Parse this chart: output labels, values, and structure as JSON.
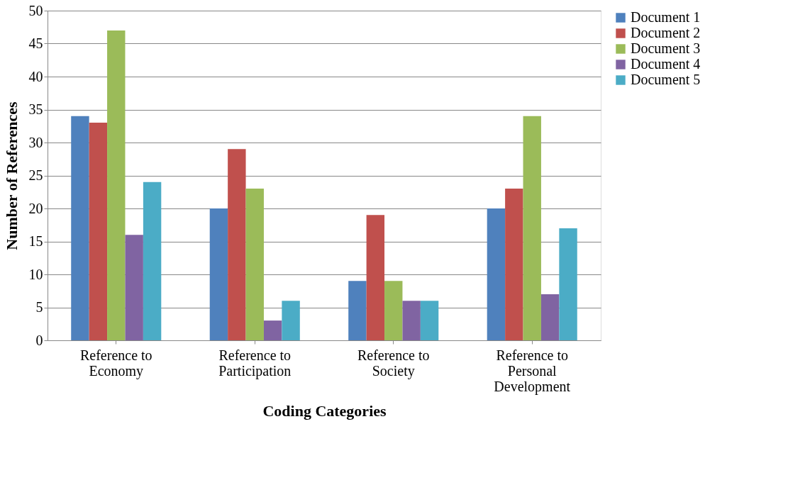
{
  "chart_data": {
    "type": "bar",
    "xlabel": "Coding Categories",
    "ylabel": "Number of References",
    "categories": [
      "Reference to Economy",
      "Reference to Participation",
      "Reference to Society",
      "Reference to Personal Development"
    ],
    "series": [
      {
        "name": "Document 1",
        "color": "#4f81bd",
        "values": [
          34,
          20,
          9,
          20
        ]
      },
      {
        "name": "Document 2",
        "color": "#c0504d",
        "values": [
          33,
          29,
          19,
          23
        ]
      },
      {
        "name": "Document 3",
        "color": "#9bbb59",
        "values": [
          47,
          23,
          9,
          34
        ]
      },
      {
        "name": "Document 4",
        "color": "#8064a2",
        "values": [
          16,
          3,
          6,
          7
        ]
      },
      {
        "name": "Document 5",
        "color": "#4bacc6",
        "values": [
          24,
          6,
          6,
          17
        ]
      }
    ],
    "ylim": [
      0,
      50
    ],
    "yticks": [
      0,
      5,
      10,
      15,
      20,
      25,
      30,
      35,
      40,
      45,
      50
    ],
    "grid": "y",
    "legend": "right"
  }
}
